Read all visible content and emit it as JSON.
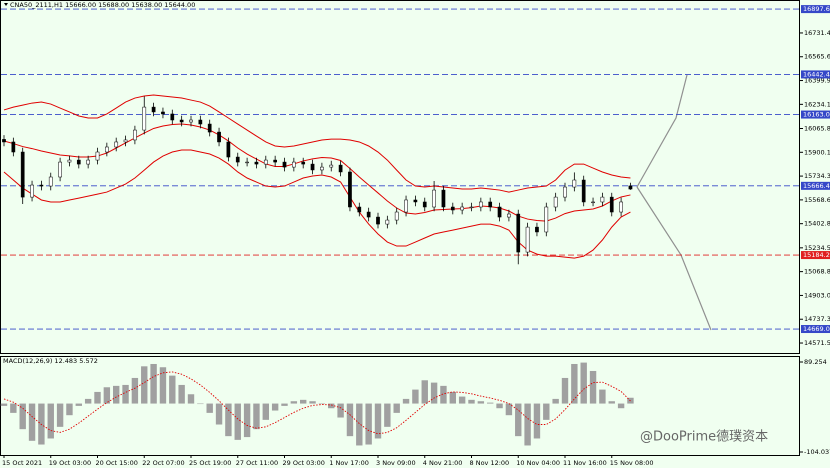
{
  "watermark": "@DooPrime德璞资本",
  "chart_data": [
    {
      "type": "candlestick",
      "title": "CNA50_2111,H1  15666.00 15688.00 15638.00 15644.00",
      "categories": [
        "15 Oct 2021",
        null,
        null,
        null,
        null,
        "19 Oct 03:00",
        null,
        null,
        null,
        null,
        "20 Oct 15:00",
        null,
        null,
        null,
        null,
        "22 Oct 07:00",
        null,
        null,
        null,
        null,
        "25 Oct 19:00",
        null,
        null,
        null,
        null,
        "27 Oct 11:00",
        null,
        null,
        null,
        null,
        "29 Oct 03:00",
        null,
        null,
        null,
        null,
        "1 Nov 17:00",
        null,
        null,
        null,
        null,
        "3 Nov 09:00",
        null,
        null,
        null,
        null,
        "4 Nov 21:00",
        null,
        null,
        null,
        null,
        "8 Nov 12:00",
        null,
        null,
        null,
        null,
        "10 Nov 04:00",
        null,
        null,
        null,
        null,
        "11 Nov 16:00",
        null,
        null,
        null,
        null,
        "15 Nov 08:00",
        null,
        null
      ],
      "open": [
        15990,
        15972,
        15902,
        15588,
        15672,
        15665,
        15728,
        15832,
        15846,
        15818,
        15846,
        15902,
        15937,
        15972,
        15986,
        16055,
        16215,
        16181,
        16167,
        16125,
        16111,
        16125,
        16097,
        16041,
        15972,
        15867,
        15832,
        15832,
        15818,
        15846,
        15832,
        15797,
        15832,
        15818,
        15777,
        15797,
        15811,
        15763,
        15519,
        15484,
        15449,
        15400,
        15428,
        15484,
        15568,
        15554,
        15519,
        15637,
        15519,
        15498,
        15519,
        15519,
        15554,
        15519,
        15449,
        15470,
        15205,
        15379,
        15345,
        15519,
        15588,
        15658,
        15707,
        15554,
        15554,
        15588,
        15484,
        15666
      ],
      "high": [
        16020,
        16002,
        15932,
        15702,
        15702,
        15758,
        15862,
        15876,
        15876,
        15876,
        15932,
        15967,
        16002,
        16016,
        16085,
        16290,
        16245,
        16211,
        16197,
        16155,
        16155,
        16155,
        16127,
        16071,
        16002,
        15897,
        15862,
        15862,
        15876,
        15876,
        15862,
        15862,
        15862,
        15848,
        15827,
        15841,
        15841,
        15793,
        15549,
        15514,
        15479,
        15458,
        15514,
        15598,
        15598,
        15584,
        15700,
        15667,
        15549,
        15549,
        15549,
        15584,
        15584,
        15549,
        15500,
        15500,
        15409,
        15409,
        15549,
        15618,
        15688,
        15760,
        15737,
        15584,
        15618,
        15618,
        15584,
        15688
      ],
      "low": [
        15942,
        15872,
        15540,
        15558,
        15635,
        15635,
        15698,
        15802,
        15788,
        15788,
        15816,
        15872,
        15907,
        15942,
        15956,
        16025,
        16151,
        16137,
        16095,
        16081,
        16081,
        16067,
        16011,
        15942,
        15837,
        15802,
        15802,
        15788,
        15788,
        15802,
        15767,
        15767,
        15788,
        15747,
        15747,
        15767,
        15733,
        15489,
        15454,
        15419,
        15370,
        15370,
        15398,
        15454,
        15524,
        15489,
        15489,
        15489,
        15468,
        15468,
        15489,
        15489,
        15489,
        15419,
        15419,
        15120,
        15175,
        15315,
        15315,
        15489,
        15558,
        15628,
        15524,
        15524,
        15524,
        15454,
        15454,
        15638
      ],
      "close": [
        15972,
        15902,
        15588,
        15672,
        15665,
        15728,
        15832,
        15846,
        15818,
        15846,
        15902,
        15937,
        15972,
        15986,
        16055,
        16215,
        16181,
        16167,
        16125,
        16111,
        16125,
        16097,
        16041,
        15972,
        15867,
        15832,
        15832,
        15818,
        15846,
        15832,
        15797,
        15832,
        15818,
        15777,
        15797,
        15811,
        15763,
        15519,
        15484,
        15449,
        15400,
        15428,
        15484,
        15568,
        15554,
        15519,
        15637,
        15519,
        15498,
        15519,
        15519,
        15554,
        15519,
        15449,
        15470,
        15205,
        15379,
        15345,
        15519,
        15588,
        15658,
        15707,
        15554,
        15554,
        15588,
        15484,
        15554,
        15644
      ],
      "series": [
        {
          "color": "#e00000",
          "values": [
            16195,
            16215,
            16229,
            16243,
            16250,
            16236,
            16208,
            16181,
            16153,
            16139,
            16139,
            16167,
            16208,
            16250,
            16278,
            16292,
            16299,
            16292,
            16285,
            16278,
            16264,
            16250,
            16222,
            16181,
            16139,
            16097,
            16055,
            16013,
            15972,
            15944,
            15937,
            15944,
            15958,
            15972,
            15986,
            15992,
            15992,
            15986,
            15972,
            15944,
            15902,
            15846,
            15776,
            15707,
            15665,
            15658,
            15665,
            15658,
            15651,
            15644,
            15644,
            15651,
            15644,
            15637,
            15623,
            15637,
            15651,
            15658,
            15665,
            15707,
            15776,
            15818,
            15818,
            15790,
            15763,
            15742,
            15728,
            15721
          ]
        },
        {
          "color": "#e00000",
          "values": [
            15979,
            15961,
            15940,
            15926,
            15909,
            15895,
            15881,
            15875,
            15867,
            15867,
            15874,
            15895,
            15930,
            15965,
            16000,
            16034,
            16066,
            16083,
            16094,
            16097,
            16090,
            16076,
            16055,
            16021,
            15979,
            15930,
            15888,
            15853,
            15819,
            15801,
            15801,
            15819,
            15840,
            15854,
            15864,
            15860,
            15843,
            15787,
            15728,
            15672,
            15617,
            15561,
            15512,
            15477,
            15470,
            15481,
            15498,
            15502,
            15505,
            15508,
            15515,
            15526,
            15522,
            15512,
            15491,
            15456,
            15435,
            15425,
            15421,
            15442,
            15473,
            15491,
            15498,
            15505,
            15526,
            15561,
            15589,
            15603
          ]
        },
        {
          "color": "#e00000",
          "values": [
            15763,
            15707,
            15651,
            15609,
            15568,
            15554,
            15554,
            15568,
            15581,
            15595,
            15609,
            15623,
            15651,
            15679,
            15721,
            15776,
            15832,
            15874,
            15902,
            15916,
            15916,
            15902,
            15888,
            15860,
            15818,
            15763,
            15721,
            15693,
            15665,
            15658,
            15665,
            15693,
            15721,
            15735,
            15742,
            15728,
            15693,
            15588,
            15484,
            15400,
            15331,
            15275,
            15247,
            15247,
            15275,
            15303,
            15331,
            15345,
            15358,
            15372,
            15386,
            15400,
            15400,
            15386,
            15358,
            15275,
            15219,
            15191,
            15177,
            15177,
            15170,
            15163,
            15177,
            15219,
            15289,
            15379,
            15449,
            15484
          ]
        }
      ],
      "levels": [
        {
          "value": 16897.6,
          "label": "16897.60",
          "color": "#3548c8"
        },
        {
          "value": 16442.48,
          "label": "16442.48",
          "color": "#3548c8"
        },
        {
          "value": 16163,
          "label": "16163.00",
          "color": "#3548c8"
        },
        {
          "value": 15666.41,
          "label": "15666.41",
          "color": "#3548c8"
        },
        {
          "value": 15184.26,
          "label": "15184.26",
          "color": "#e02020"
        },
        {
          "value": 14669.06,
          "label": "14669.06",
          "color": "#3548c8"
        }
      ],
      "ylim": [
        14509,
        16947
      ],
      "yticks": [
        {
          "value": 16731.4,
          "label": "16731.40"
        },
        16565.65,
        {
          "value": 16399.9,
          "label": "16399.90"
        },
        16234.15,
        16065.85,
        {
          "value": 15900.1,
          "label": "15900.10"
        },
        15734.35,
        {
          "value": 15568.6,
          "label": "15568.60"
        },
        15402.85,
        15234.55,
        {
          "value": 15068.8,
          "label": "15068.80"
        },
        14903.05,
        {
          "value": 14737.3,
          "label": "14737.30"
        },
        14571.55
      ]
    },
    {
      "type": "macd",
      "title": "MACD(12,26,9) 12.483 5.572",
      "color": "#a0a0a0",
      "values": [
        -5,
        -20,
        -55,
        -80,
        -88,
        -75,
        -50,
        -25,
        -5,
        10,
        25,
        35,
        38,
        40,
        55,
        80,
        85,
        78,
        60,
        40,
        20,
        0,
        -20,
        -45,
        -70,
        -78,
        -72,
        -55,
        -35,
        -15,
        -5,
        5,
        8,
        5,
        0,
        -10,
        -30,
        -70,
        -90,
        -88,
        -75,
        -50,
        -20,
        10,
        30,
        50,
        45,
        38,
        25,
        15,
        8,
        5,
        2,
        -10,
        -25,
        -70,
        -90,
        -75,
        -35,
        10,
        55,
        85,
        88,
        70,
        30,
        5,
        -10,
        12.483
      ],
      "signal": {
        "color": "#e00000",
        "values": [
          10,
          3,
          -10,
          -28,
          -45,
          -58,
          -62,
          -55,
          -42,
          -27,
          -12,
          2,
          14,
          24,
          33,
          45,
          58,
          66,
          68,
          63,
          53,
          40,
          24,
          6,
          -14,
          -33,
          -47,
          -53,
          -50,
          -41,
          -30,
          -19,
          -10,
          -4,
          -2,
          -3,
          -9,
          -24,
          -43,
          -58,
          -65,
          -62,
          -52,
          -36,
          -19,
          -2,
          12,
          21,
          25,
          24,
          21,
          16,
          12,
          7,
          0,
          -14,
          -32,
          -45,
          -45,
          -33,
          -13,
          10,
          31,
          45,
          46,
          37,
          26,
          5.572
        ]
      },
      "ylim": [
        -110.48,
        100
      ],
      "yticks": [
        89.254,
        -104.037
      ]
    }
  ]
}
